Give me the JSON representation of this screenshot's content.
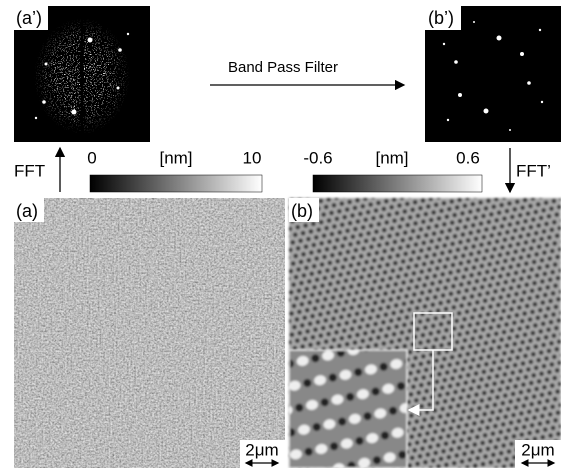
{
  "panels": {
    "a_prime": {
      "label": "(a’)"
    },
    "b_prime": {
      "label": "(b’)"
    },
    "a": {
      "label": "(a)",
      "scale_bar": "2μm"
    },
    "b": {
      "label": "(b)",
      "scale_bar": "2μm"
    }
  },
  "process": {
    "filter": "Band Pass Filter",
    "forward": "FFT",
    "inverse": "FFT’"
  },
  "colorbars": [
    {
      "min": "0",
      "unit": "[nm]",
      "max": "10"
    },
    {
      "min": "-0.6",
      "unit": "[nm]",
      "max": "0.6"
    }
  ]
}
